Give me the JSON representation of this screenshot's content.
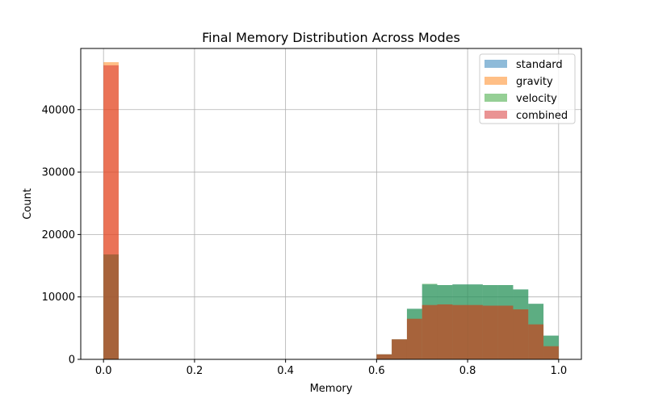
{
  "chart_data": {
    "type": "histogram",
    "title": "Final Memory Distribution Across Modes",
    "xlabel": "Memory",
    "ylabel": "Count",
    "xlim": [
      -0.05,
      1.05
    ],
    "ylim": [
      0,
      49800
    ],
    "xticks": [
      0.0,
      0.2,
      0.4,
      0.6,
      0.8,
      1.0
    ],
    "xtick_labels": [
      "0.0",
      "0.2",
      "0.4",
      "0.6",
      "0.8",
      "1.0"
    ],
    "yticks": [
      0,
      10000,
      20000,
      30000,
      40000
    ],
    "ytick_labels": [
      "0",
      "10000",
      "20000",
      "30000",
      "40000"
    ],
    "grid": true,
    "legend_position": "top-right",
    "bin_edges": [
      0.0,
      0.0333,
      0.0667,
      0.1,
      0.1333,
      0.1667,
      0.2,
      0.2333,
      0.2667,
      0.3,
      0.3333,
      0.3667,
      0.4,
      0.4333,
      0.4667,
      0.5,
      0.5333,
      0.5667,
      0.6,
      0.6333,
      0.6667,
      0.7,
      0.7333,
      0.7667,
      0.8,
      0.8333,
      0.8667,
      0.9,
      0.9333,
      0.9667,
      1.0
    ],
    "series": [
      {
        "name": "standard",
        "color": "#1f77b4",
        "values": [
          16800,
          0,
          0,
          0,
          0,
          0,
          0,
          0,
          0,
          0,
          0,
          0,
          0,
          0,
          0,
          0,
          0,
          0,
          800,
          3200,
          8100,
          12000,
          11900,
          12000,
          12000,
          11900,
          11900,
          11200,
          8900,
          3800
        ]
      },
      {
        "name": "gravity",
        "color": "#ff7f0e",
        "values": [
          47600,
          0,
          0,
          0,
          0,
          0,
          0,
          0,
          0,
          0,
          0,
          0,
          0,
          0,
          0,
          0,
          0,
          0,
          800,
          3200,
          6500,
          8700,
          8800,
          8700,
          8700,
          8600,
          8600,
          8000,
          5600,
          2100
        ]
      },
      {
        "name": "velocity",
        "color": "#2ca02c",
        "values": [
          16800,
          0,
          0,
          0,
          0,
          0,
          0,
          0,
          0,
          0,
          0,
          0,
          0,
          0,
          0,
          0,
          0,
          0,
          800,
          3200,
          8100,
          12100,
          11900,
          12000,
          12000,
          11900,
          11900,
          11200,
          8900,
          3800
        ]
      },
      {
        "name": "combined",
        "color": "#d62728",
        "values": [
          47100,
          0,
          0,
          0,
          0,
          0,
          0,
          0,
          0,
          0,
          0,
          0,
          0,
          0,
          0,
          0,
          0,
          0,
          800,
          3200,
          6500,
          8700,
          8800,
          8700,
          8700,
          8600,
          8600,
          8000,
          5600,
          2100
        ]
      }
    ],
    "bar_alpha": 0.5
  }
}
